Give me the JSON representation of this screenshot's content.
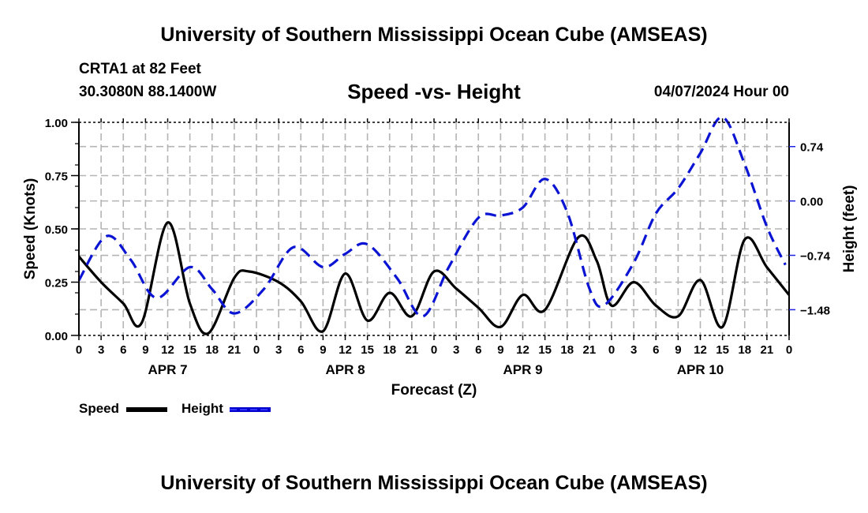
{
  "header": {
    "title": "University of Southern Mississippi Ocean Cube (AMSEAS)",
    "station": "CRTA1 at 82 Feet",
    "coordinates": "30.3080N  88.1400W",
    "subtitle": "Speed -vs- Height",
    "datetime": "04/07/2024 Hour 00"
  },
  "footer": {
    "title": "University of Southern Mississippi Ocean Cube (AMSEAS)"
  },
  "legend": {
    "items": [
      {
        "label": "Speed",
        "color": "#000000",
        "style": "solid"
      },
      {
        "label": "Height",
        "color": "#0000cc",
        "style": "dashed"
      }
    ]
  },
  "chart_data": {
    "type": "line",
    "title": "Speed -vs- Height",
    "xlabel": "Forecast (Z)",
    "ylabel": "Speed (Knots)",
    "y2label": "Height (feet)",
    "xlim": [
      0,
      96
    ],
    "ylim": [
      0,
      1.0
    ],
    "y2lim": [
      -1.83,
      1.07
    ],
    "grid": true,
    "legend_position": "bottom-left",
    "x_tick_labels": [
      "0",
      "3",
      "6",
      "9",
      "12",
      "15",
      "18",
      "21",
      "0",
      "3",
      "6",
      "9",
      "12",
      "15",
      "18",
      "21",
      "0",
      "3",
      "6",
      "9",
      "12",
      "15",
      "18",
      "21",
      "0",
      "3",
      "6",
      "9",
      "12",
      "15",
      "18",
      "21",
      "0"
    ],
    "day_labels": [
      {
        "label": "APR 7",
        "hour": 12
      },
      {
        "label": "APR 8",
        "hour": 36
      },
      {
        "label": "APR 9",
        "hour": 60
      },
      {
        "label": "APR 10",
        "hour": 84
      }
    ],
    "y_ticks": [
      "0.00",
      "0.25",
      "0.50",
      "0.75",
      "1.00"
    ],
    "y2_ticks": [
      "-1.48",
      "-0.74",
      "0.00",
      "0.74"
    ],
    "series": [
      {
        "name": "Speed",
        "axis": "left",
        "color": "#000000",
        "x": [
          0,
          3,
          6,
          8.5,
          12,
          15,
          17.5,
          21,
          23,
          27,
          30,
          33,
          36,
          39,
          42,
          45,
          48,
          51,
          54,
          57,
          60,
          63,
          67.5,
          70,
          72,
          75,
          78,
          81,
          84,
          87,
          90,
          93,
          96
        ],
        "values": [
          0.37,
          0.25,
          0.15,
          0.06,
          0.53,
          0.15,
          0.01,
          0.27,
          0.3,
          0.25,
          0.16,
          0.02,
          0.29,
          0.07,
          0.2,
          0.09,
          0.3,
          0.22,
          0.13,
          0.04,
          0.19,
          0.12,
          0.46,
          0.35,
          0.14,
          0.25,
          0.14,
          0.09,
          0.26,
          0.04,
          0.45,
          0.32,
          0.19
        ]
      },
      {
        "name": "Height",
        "axis": "right",
        "color": "#0000cc",
        "x": [
          0,
          3.7,
          7,
          10.5,
          15,
          18,
          21,
          25,
          29,
          33,
          36,
          39,
          43,
          46.5,
          50,
          54,
          57,
          60,
          63,
          66,
          69,
          71,
          75,
          78,
          81,
          84,
          87,
          90,
          93,
          95.5
        ],
        "values": [
          -1.08,
          -0.48,
          -0.8,
          -1.32,
          -0.9,
          -1.2,
          -1.53,
          -1.2,
          -0.63,
          -0.9,
          -0.72,
          -0.59,
          -1.05,
          -1.57,
          -0.9,
          -0.23,
          -0.2,
          -0.09,
          0.3,
          -0.15,
          -1.19,
          -1.42,
          -0.84,
          -0.17,
          0.17,
          0.65,
          1.14,
          0.5,
          -0.35,
          -0.87
        ]
      }
    ]
  }
}
